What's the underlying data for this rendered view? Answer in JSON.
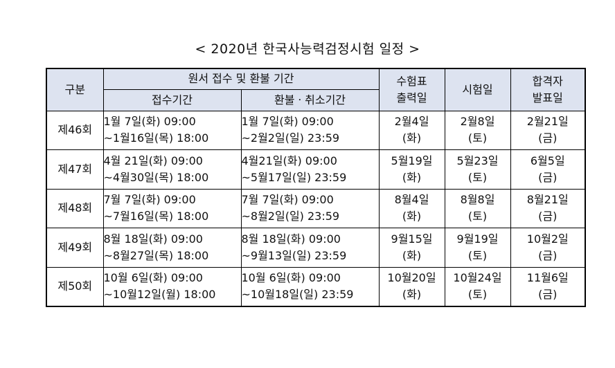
{
  "title": "< 2020년 한국사능력검정시험 일정 >",
  "headers": {
    "category": "구분",
    "application_group": "원서 접수 및 환불 기간",
    "receipt_period": "접수기간",
    "refund_period": "환불ㆍ취소기간",
    "ticket_print": [
      "수험표",
      "출력일"
    ],
    "exam_date": "시험일",
    "result_date": [
      "합격자",
      "발표일"
    ]
  },
  "rows": [
    {
      "round": "제46회",
      "receipt": [
        "1월 7일(화) 09:00",
        "~1월16일(목) 18:00"
      ],
      "refund": [
        "1월 7일(화) 09:00",
        "~2월2일(일) 23:59"
      ],
      "ticket": [
        "2월4일",
        "(화)"
      ],
      "exam": [
        "2월8일",
        "(토)"
      ],
      "result": [
        "2월21일",
        "(금)"
      ]
    },
    {
      "round": "제47회",
      "receipt": [
        "4월 21일(화) 09:00",
        "~4월30일(목) 18:00"
      ],
      "refund": [
        "4월21일(화) 09:00",
        "~5월17일(일) 23:59"
      ],
      "ticket": [
        "5월19일",
        "(화)"
      ],
      "exam": [
        "5월23일",
        "(토)"
      ],
      "result": [
        "6월5일",
        "(금)"
      ]
    },
    {
      "round": "제48회",
      "receipt": [
        "7월 7일(화) 09:00",
        "~7월16일(목) 18:00"
      ],
      "refund": [
        "7월 7일(화) 09:00",
        "~8월2일(일) 23:59"
      ],
      "ticket": [
        "8월4일",
        "(화)"
      ],
      "exam": [
        "8월8일",
        "(토)"
      ],
      "result": [
        "8월21일",
        "(금)"
      ]
    },
    {
      "round": "제49회",
      "receipt": [
        "8월 18일(화) 09:00",
        "~8월27일(목) 18:00"
      ],
      "refund": [
        "8월 18일(화) 09:00",
        "~9월13일(일) 23:59"
      ],
      "ticket": [
        "9월15일",
        "(화)"
      ],
      "exam": [
        "9월19일",
        "(토)"
      ],
      "result": [
        "10월2일",
        "(금)"
      ]
    },
    {
      "round": "제50회",
      "receipt": [
        "10월 6일(화) 09:00",
        "~10월12일(월) 18:00"
      ],
      "refund": [
        "10월 6일(화) 09:00",
        "~10월18일(일) 23:59"
      ],
      "ticket": [
        "10월20일",
        "(화)"
      ],
      "exam": [
        "10월24일",
        "(토)"
      ],
      "result": [
        "11월6일",
        "(금)"
      ]
    }
  ]
}
